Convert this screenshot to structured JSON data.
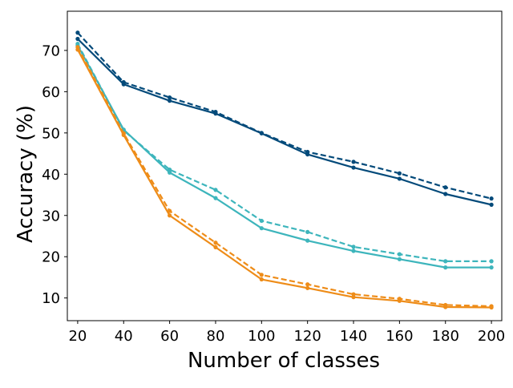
{
  "chart_data": {
    "type": "line",
    "title": "",
    "xlabel": "Number of classes",
    "ylabel": "Accuracy (%)",
    "xlim": [
      15.5,
      204.5
    ],
    "ylim": [
      4.5,
      79.5
    ],
    "xticks": [
      20,
      40,
      60,
      80,
      100,
      120,
      140,
      160,
      180,
      200
    ],
    "yticks": [
      10,
      20,
      30,
      40,
      50,
      60,
      70
    ],
    "grid": false,
    "legend": "none",
    "x": [
      20,
      40,
      60,
      80,
      100,
      120,
      140,
      160,
      180,
      200
    ],
    "series": [
      {
        "color": "#034a7a",
        "style": "solid",
        "values": [
          72.8,
          61.8,
          57.8,
          54.7,
          49.9,
          44.8,
          41.6,
          38.9,
          35.2,
          32.6
        ]
      },
      {
        "color": "#034a7a",
        "style": "dashed",
        "values": [
          74.3,
          62.3,
          58.6,
          55.1,
          50.0,
          45.4,
          43.0,
          40.2,
          36.8,
          34.1
        ]
      },
      {
        "color": "#3db5bc",
        "style": "solid",
        "values": [
          71.2,
          50.8,
          40.4,
          34.2,
          26.9,
          23.9,
          21.4,
          19.4,
          17.4,
          17.4
        ]
      },
      {
        "color": "#3db5bc",
        "style": "dashed",
        "values": [
          71.6,
          50.6,
          41.1,
          36.2,
          28.7,
          26.0,
          22.4,
          20.6,
          18.9,
          18.9
        ]
      },
      {
        "color": "#ee8c18",
        "style": "solid",
        "values": [
          70.2,
          49.5,
          30.0,
          22.3,
          14.5,
          12.4,
          10.2,
          9.3,
          7.8,
          7.7
        ]
      },
      {
        "color": "#ee8c18",
        "style": "dashed",
        "values": [
          70.8,
          49.9,
          31.1,
          23.4,
          15.6,
          13.3,
          10.9,
          9.8,
          8.3,
          8.0
        ]
      }
    ]
  }
}
